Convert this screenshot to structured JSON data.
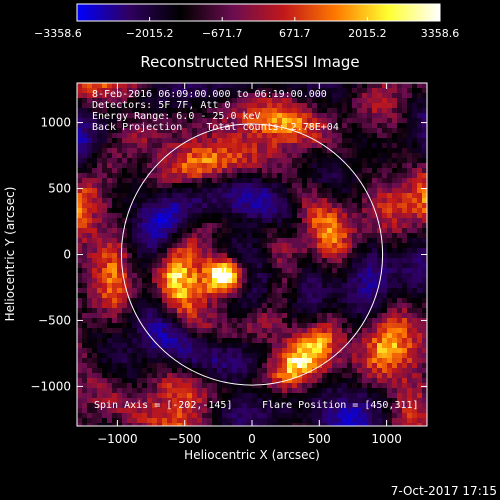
{
  "chart_data": {
    "type": "heatmap",
    "title": "Reconstructed RHESSI Image",
    "xlabel": "Heliocentric X (arcsec)",
    "ylabel": "Heliocentric Y (arcsec)",
    "xlim": [
      -1300,
      1300
    ],
    "ylim": [
      -1300,
      1300
    ],
    "x_ticks": [
      -1000,
      -500,
      0,
      500,
      1000
    ],
    "y_ticks": [
      -1000,
      -500,
      0,
      500,
      1000
    ],
    "x_tick_labels": [
      "−1000",
      "−500",
      "0",
      "500",
      "1000"
    ],
    "y_tick_labels": [
      "−1000",
      "−500",
      "0",
      "500",
      "1000"
    ],
    "colorbar": {
      "min": -3358.6,
      "max": 3358.6,
      "ticks": [
        -3358.6,
        -2015.2,
        -671.7,
        671.7,
        2015.2,
        3358.6
      ],
      "tick_labels": [
        "−3358.6",
        "−2015.2",
        "−671.7",
        "671.7",
        "2015.2",
        "3358.6"
      ],
      "colors": [
        "#0000ff",
        "#2f0060",
        "#000000",
        "#6a0d50",
        "#c2181a",
        "#ff7a00",
        "#ffff30",
        "#ffffff"
      ]
    },
    "solar_disk": {
      "center": [
        0,
        0
      ],
      "radius": 970
    },
    "marker": {
      "symbol": "+",
      "x": -202,
      "y": -145
    },
    "annotations": [
      "8-Feb-2016 06:09:00.000 to 06:19:00.000",
      "Detectors: 5F 7F, Att 0",
      "Energy Range: 6.0 - 25.0 keV",
      "Back Projection    Total counts: 2.78E+04"
    ],
    "spin_axis_label": "Spin Axis = [-202,-145]",
    "flare_position_label": "Flare Position = [450,311]",
    "timestamp": "7-Oct-2017 17:15"
  }
}
